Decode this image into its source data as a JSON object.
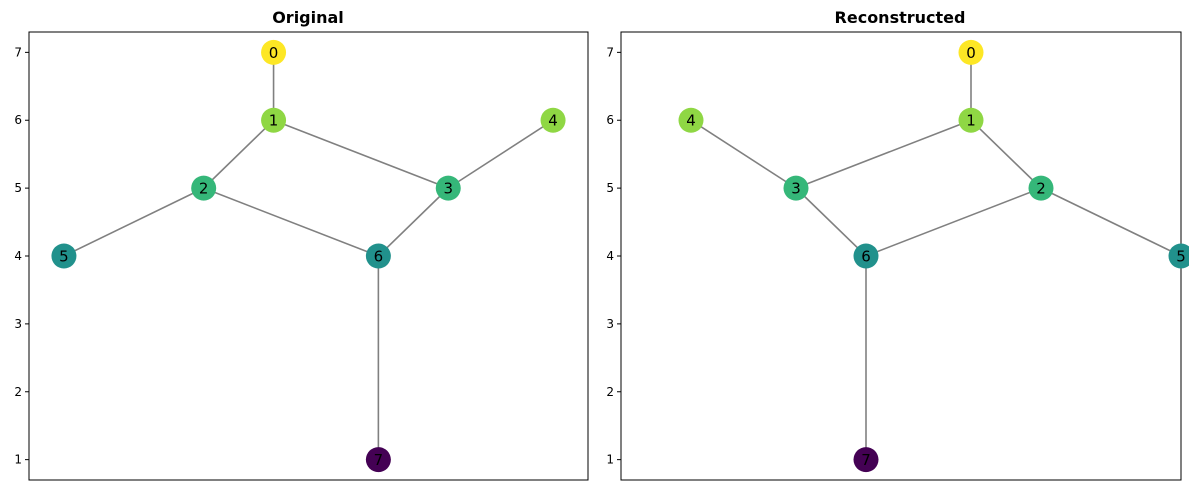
{
  "chart_data": [
    {
      "type": "graph",
      "title": "Original",
      "ylim": [
        0.7,
        7.3
      ],
      "xlim": [
        -0.2,
        6.2
      ],
      "yticks": [
        1,
        2,
        3,
        4,
        5,
        6,
        7
      ],
      "nodes": [
        {
          "id": "0",
          "x": 2.6,
          "y": 7,
          "color": "#fde725"
        },
        {
          "id": "1",
          "x": 2.6,
          "y": 6,
          "color": "#8fd744"
        },
        {
          "id": "2",
          "x": 1.8,
          "y": 5,
          "color": "#35b779"
        },
        {
          "id": "3",
          "x": 4.6,
          "y": 5,
          "color": "#35b779"
        },
        {
          "id": "4",
          "x": 5.8,
          "y": 6,
          "color": "#8fd744"
        },
        {
          "id": "5",
          "x": 0.2,
          "y": 4,
          "color": "#21918c"
        },
        {
          "id": "6",
          "x": 3.8,
          "y": 4,
          "color": "#21918c"
        },
        {
          "id": "7",
          "x": 3.8,
          "y": 1,
          "color": "#440154"
        }
      ],
      "edges": [
        [
          "0",
          "1"
        ],
        [
          "1",
          "2"
        ],
        [
          "1",
          "3"
        ],
        [
          "3",
          "4"
        ],
        [
          "2",
          "5"
        ],
        [
          "2",
          "6"
        ],
        [
          "3",
          "6"
        ],
        [
          "6",
          "7"
        ]
      ]
    },
    {
      "type": "graph",
      "title": "Reconstructed",
      "ylim": [
        0.7,
        7.3
      ],
      "xlim": [
        -0.2,
        6.2
      ],
      "yticks": [
        1,
        2,
        3,
        4,
        5,
        6,
        7
      ],
      "nodes": [
        {
          "id": "0",
          "x": 3.8,
          "y": 7,
          "color": "#fde725"
        },
        {
          "id": "1",
          "x": 3.8,
          "y": 6,
          "color": "#8fd744"
        },
        {
          "id": "2",
          "x": 4.6,
          "y": 5,
          "color": "#35b779"
        },
        {
          "id": "3",
          "x": 1.8,
          "y": 5,
          "color": "#35b779"
        },
        {
          "id": "4",
          "x": 0.6,
          "y": 6,
          "color": "#8fd744"
        },
        {
          "id": "5",
          "x": 6.2,
          "y": 4,
          "color": "#21918c"
        },
        {
          "id": "6",
          "x": 2.6,
          "y": 4,
          "color": "#21918c"
        },
        {
          "id": "7",
          "x": 2.6,
          "y": 1,
          "color": "#440154"
        }
      ],
      "edges": [
        [
          "0",
          "1"
        ],
        [
          "1",
          "2"
        ],
        [
          "1",
          "3"
        ],
        [
          "3",
          "4"
        ],
        [
          "2",
          "5"
        ],
        [
          "2",
          "6"
        ],
        [
          "3",
          "6"
        ],
        [
          "6",
          "7"
        ]
      ]
    }
  ]
}
